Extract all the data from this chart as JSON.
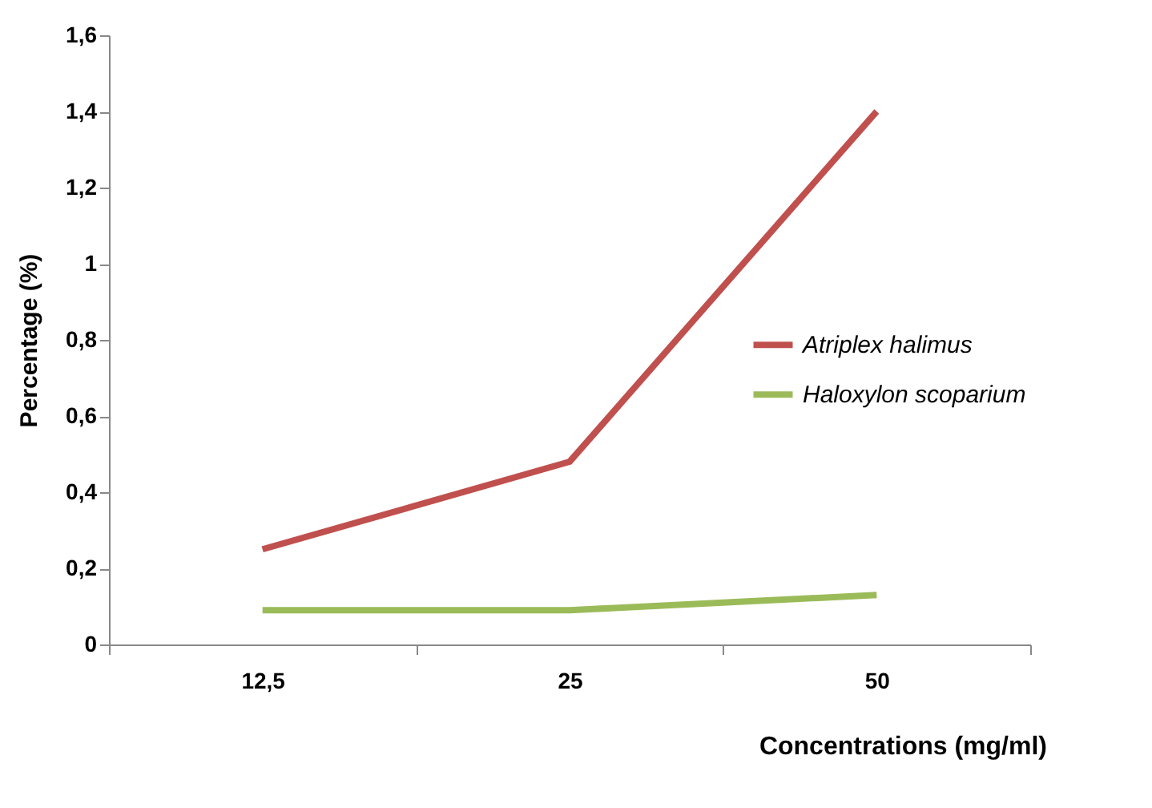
{
  "chart_data": {
    "type": "line",
    "xlabel": "Concentrations (mg/ml)",
    "ylabel": "Percentage (%)",
    "categories": [
      "12,5",
      "25",
      "50"
    ],
    "series": [
      {
        "name": "Atriplex halimus",
        "color": "#c0504d",
        "values": [
          0.25,
          0.48,
          1.4
        ]
      },
      {
        "name": "Haloxylon scoparium",
        "color": "#9bbb59",
        "values": [
          0.09,
          0.09,
          0.13
        ]
      }
    ],
    "ylim": [
      0,
      1.6
    ],
    "yticks": [
      0,
      {
        "value": 0.2,
        "label": "0,2"
      },
      {
        "value": 0.4,
        "label": "0,4"
      },
      {
        "value": 0.6,
        "label": "0,6"
      },
      {
        "value": 0.8,
        "label": "0,8"
      },
      1,
      {
        "value": 1.2,
        "label": "1,2"
      },
      {
        "value": 1.4,
        "label": "1,4"
      },
      {
        "value": 1.6,
        "label": "1,6"
      }
    ],
    "grid": false,
    "legend": "center right",
    "marker": "none",
    "line_style": "solid"
  }
}
